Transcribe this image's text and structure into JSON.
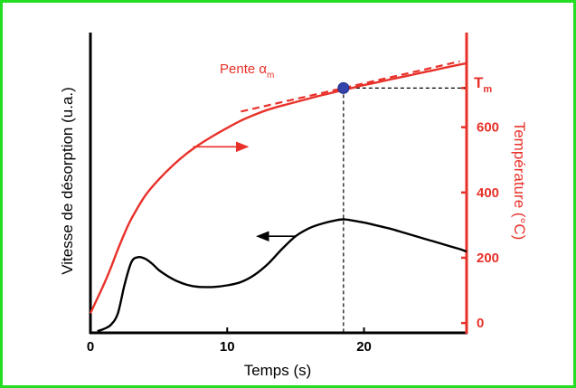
{
  "colors": {
    "frame": "#22dd22",
    "axis_left": "#000000",
    "axis_right": "#e8312a",
    "temperature_curve": "#e8312a",
    "desorption_curve": "#000000",
    "marker": "#3344aa",
    "guide": "#000000"
  },
  "chart_data": {
    "type": "line",
    "title": "",
    "x_axis": {
      "label": "Temps (s)",
      "range": [
        0,
        27.5
      ],
      "ticks": [
        0,
        10,
        20
      ],
      "tick_labels": [
        "0",
        "10",
        "20"
      ]
    },
    "y_axis_left": {
      "label": "Vitesse de désorption (u.a.)",
      "unit": "u.a.",
      "ticks": [],
      "range": [
        0,
        1
      ]
    },
    "y_axis_right": {
      "label": "Température (°C)",
      "range": [
        -30,
        890
      ],
      "ticks": [
        0,
        200,
        400,
        600
      ],
      "tick_labels": [
        "0",
        "200",
        "400",
        "600"
      ],
      "marker_label": "T",
      "marker_label_sub": "m",
      "marker_value": 720
    },
    "series": [
      {
        "axis": "right",
        "values": [
          [
            0,
            30
          ],
          [
            0.5,
            75
          ],
          [
            1,
            120
          ],
          [
            1.5,
            170
          ],
          [
            2,
            225
          ],
          [
            2.5,
            275
          ],
          [
            3,
            320
          ],
          [
            4,
            390
          ],
          [
            5,
            440
          ],
          [
            6,
            482
          ],
          [
            7,
            518
          ],
          [
            8,
            548
          ],
          [
            9,
            574
          ],
          [
            10,
            598
          ],
          [
            11,
            620
          ],
          [
            12,
            638
          ],
          [
            13,
            654
          ],
          [
            14,
            666
          ],
          [
            15,
            677
          ],
          [
            16,
            688
          ],
          [
            17,
            699
          ],
          [
            18,
            709
          ],
          [
            19,
            719
          ],
          [
            20,
            729
          ],
          [
            21,
            738
          ],
          [
            22,
            747
          ],
          [
            23,
            756
          ],
          [
            24,
            765
          ],
          [
            25,
            774
          ],
          [
            26,
            783
          ],
          [
            27,
            792
          ],
          [
            27.5,
            796
          ]
        ]
      },
      {
        "axis": "left",
        "values": [
          [
            0.5,
            0.01
          ],
          [
            1,
            0.025
          ],
          [
            1.5,
            0.05
          ],
          [
            2,
            0.12
          ],
          [
            2.5,
            0.3
          ],
          [
            3,
            0.44
          ],
          [
            3.5,
            0.47
          ],
          [
            4,
            0.46
          ],
          [
            4.5,
            0.43
          ],
          [
            5,
            0.39
          ],
          [
            5.5,
            0.36
          ],
          [
            6,
            0.335
          ],
          [
            6.5,
            0.315
          ],
          [
            7,
            0.3
          ],
          [
            7.5,
            0.29
          ],
          [
            8,
            0.285
          ],
          [
            9,
            0.285
          ],
          [
            10,
            0.295
          ],
          [
            11,
            0.315
          ],
          [
            12,
            0.36
          ],
          [
            13,
            0.43
          ],
          [
            14,
            0.52
          ],
          [
            15,
            0.6
          ],
          [
            16,
            0.65
          ],
          [
            17,
            0.68
          ],
          [
            18,
            0.7
          ],
          [
            18.5,
            0.705
          ],
          [
            19,
            0.7
          ],
          [
            20,
            0.685
          ],
          [
            21,
            0.665
          ],
          [
            22,
            0.645
          ],
          [
            23,
            0.62
          ],
          [
            24,
            0.595
          ],
          [
            25,
            0.57
          ],
          [
            26,
            0.545
          ],
          [
            27,
            0.52
          ],
          [
            27.5,
            0.505
          ]
        ]
      }
    ],
    "annotations": {
      "tangent_label": "Pente α",
      "tangent_label_sub": "m",
      "tangent": {
        "x_start": 11,
        "x_end": 27,
        "through_x": 18.5,
        "through_y": 720,
        "slope_per_s": 9.6
      },
      "peak_marker": {
        "x": 18.5,
        "y": 720
      },
      "arrows": [
        {
          "points_to": "right_axis",
          "x_from": 7.5,
          "x_to": 11.5,
          "y": 540
        },
        {
          "points_to": "left_axis",
          "x_from": 15,
          "x_to": 12.2,
          "y": 0.6
        }
      ]
    }
  }
}
